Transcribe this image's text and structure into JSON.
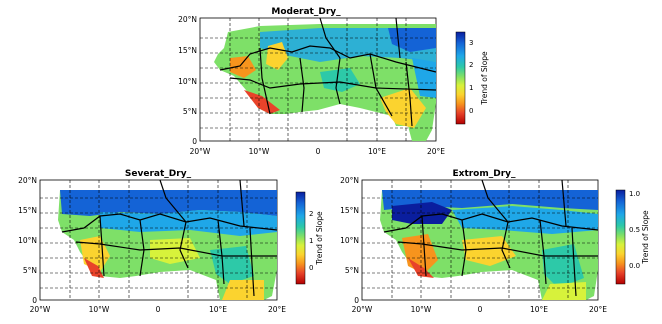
{
  "panels": [
    {
      "id": "moderate",
      "title": "Moderat_Dry_",
      "lat_ticks": [
        "0",
        "5°N",
        "10°N",
        "15°N",
        "20°N"
      ],
      "lon_ticks": [
        "20°W",
        "10°W",
        "0",
        "10°E",
        "20°E"
      ],
      "colorbar": {
        "label": "Trend of Slope",
        "ticks": [
          "3",
          "2",
          "1",
          "0"
        ],
        "range": [
          -0.8,
          3.4
        ]
      }
    },
    {
      "id": "severe",
      "title": "Severat_Dry_",
      "lat_ticks": [
        "0",
        "5°N",
        "10°N",
        "15°N",
        "20°N"
      ],
      "lon_ticks": [
        "20°W",
        "10°W",
        "0",
        "10°E",
        "20°E"
      ],
      "colorbar": {
        "label": "Trend of Slope",
        "ticks": [
          "2",
          "1",
          "0"
        ],
        "range": [
          -0.8,
          2.6
        ]
      }
    },
    {
      "id": "extreme",
      "title": "Extrom_Dry_",
      "lat_ticks": [
        "0",
        "5°N",
        "10°N",
        "15°N",
        "20°N"
      ],
      "lon_ticks": [
        "20°W",
        "10°W",
        "0",
        "10°E",
        "20°E"
      ],
      "colorbar": {
        "label": "Trend of Slope",
        "ticks": [
          "1.0",
          "0.5",
          "0.0"
        ],
        "range": [
          -0.25,
          1.05
        ]
      }
    }
  ],
  "colors": {
    "colormap": [
      "#b30000",
      "#e8432a",
      "#f7941d",
      "#fbd32f",
      "#d7f23b",
      "#7ee068",
      "#2dc9a8",
      "#1fa7e8",
      "#1463d6",
      "#0a1e9e"
    ],
    "land_background": "#ffffff",
    "border": "#000000"
  }
}
